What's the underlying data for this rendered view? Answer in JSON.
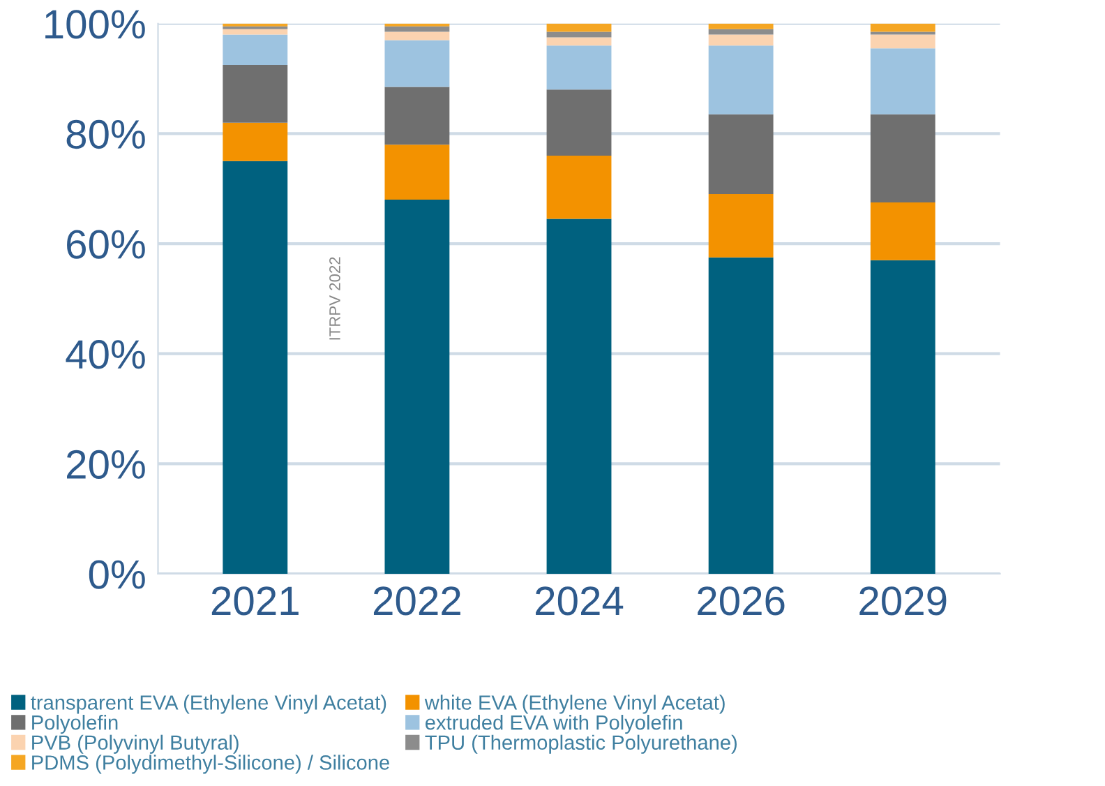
{
  "chart_data": {
    "type": "bar",
    "stacked": true,
    "categories": [
      "2021",
      "2022",
      "2024",
      "2026",
      "2029"
    ],
    "series": [
      {
        "name": "transparent EVA (Ethylene Vinyl Acetat)",
        "color": "#00617f",
        "values": [
          75,
          68,
          64.5,
          57.5,
          57
        ]
      },
      {
        "name": "white EVA (Ethylene Vinyl Acetat)",
        "color": "#f39200",
        "values": [
          7,
          10,
          11.5,
          11.5,
          10.5
        ]
      },
      {
        "name": "Polyolefin",
        "color": "#6f6f6f",
        "values": [
          10.5,
          10.5,
          12,
          14.5,
          16
        ]
      },
      {
        "name": "extruded EVA with Polyolefin",
        "color": "#9dc3e0",
        "values": [
          5.5,
          8.5,
          8,
          12.5,
          12
        ]
      },
      {
        "name": "PVB (Polyvinyl Butyral)",
        "color": "#fbd3b0",
        "values": [
          1,
          1.5,
          1.5,
          2,
          2.5
        ]
      },
      {
        "name": "TPU (Thermoplastic Polyurethane)",
        "color": "#8c8c8c",
        "values": [
          0.5,
          1,
          1,
          1,
          0.5
        ]
      },
      {
        "name": "PDMS (Polydimethyl-Silicone) / Silicone",
        "color": "#f5a623",
        "values": [
          0.5,
          0.5,
          1.5,
          1,
          1.5
        ]
      }
    ],
    "ylim": [
      0,
      100
    ],
    "yticks": [
      {
        "value": 0,
        "label": "0%"
      },
      {
        "value": 20,
        "label": "20%"
      },
      {
        "value": 40,
        "label": "40%"
      },
      {
        "value": 60,
        "label": "60%"
      },
      {
        "value": 80,
        "label": "80%"
      },
      {
        "value": 100,
        "label": "100%"
      }
    ],
    "grid": "y",
    "legend": "bottom",
    "annotations": [
      {
        "text": "ITRPV 2022"
      }
    ]
  }
}
